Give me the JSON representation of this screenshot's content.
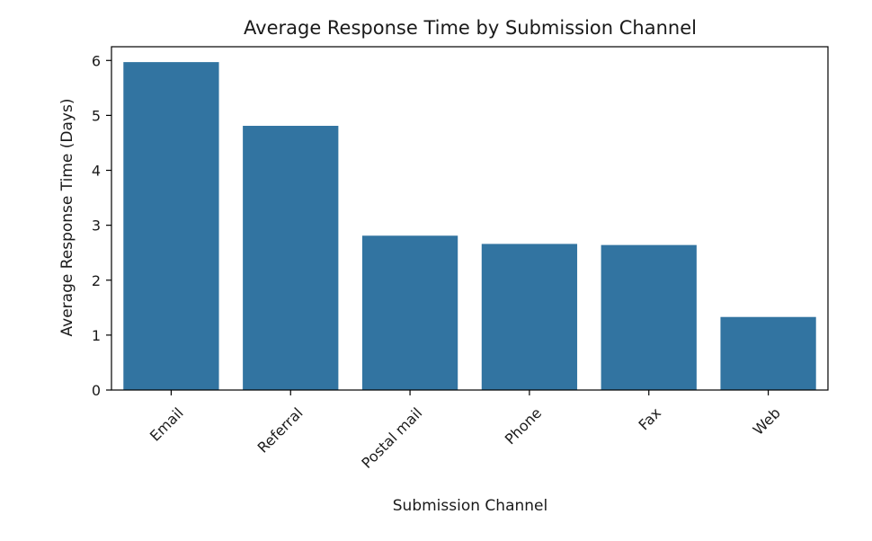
{
  "chart_data": {
    "type": "bar",
    "title": "Average Response Time by Submission Channel",
    "xlabel": "Submission Channel",
    "ylabel": "Average Response Time (Days)",
    "categories": [
      "Email",
      "Referral",
      "Postal mail",
      "Phone",
      "Fax",
      "Web"
    ],
    "values": [
      5.97,
      4.81,
      2.81,
      2.66,
      2.64,
      1.33
    ],
    "ylim": [
      0,
      6.25
    ],
    "yticks": [
      0,
      1,
      2,
      3,
      4,
      5,
      6
    ],
    "grid": false,
    "bar_color": "#3274a1",
    "axis_color": "#000000"
  }
}
